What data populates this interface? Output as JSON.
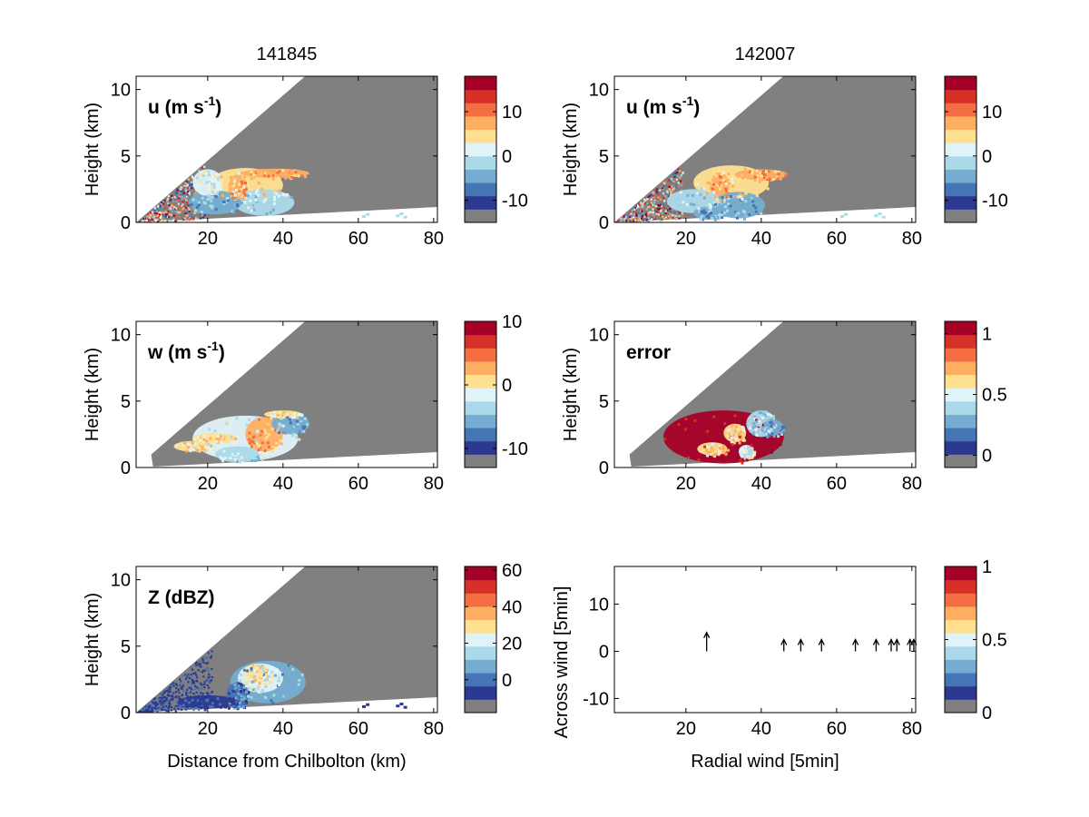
{
  "colors": {
    "background_fill": "#808080",
    "frame": "#000000",
    "colormap": [
      "#808080",
      "#2b3990",
      "#4575b4",
      "#74add1",
      "#abd9e9",
      "#e0f3f8",
      "#fee090",
      "#fdae61",
      "#f46d43",
      "#d73027",
      "#a50026"
    ],
    "arrow": "#000000"
  },
  "chart_data": [
    {
      "type": "heatmap",
      "panel": "u-141845",
      "title": "141845",
      "label": "u (m s-1)",
      "xlabel": "",
      "ylabel": "Height (km)",
      "xlim": [
        1,
        81
      ],
      "ylim": [
        0,
        11
      ],
      "xticks": [
        "20",
        "40",
        "60",
        "80"
      ],
      "yticks": [
        "0",
        "5",
        "10"
      ],
      "colorbar": {
        "ticks": [
          "10",
          "0",
          "-10"
        ],
        "tick_values": [
          10,
          0,
          -10
        ],
        "range": [
          -15,
          18
        ]
      }
    },
    {
      "type": "heatmap",
      "panel": "u-142007",
      "title": "142007",
      "label": "u (m s-1)",
      "xlabel": "",
      "ylabel": "Height (km)",
      "xlim": [
        1,
        81
      ],
      "ylim": [
        0,
        11
      ],
      "xticks": [
        "20",
        "40",
        "60",
        "80"
      ],
      "yticks": [
        "0",
        "5",
        "10"
      ],
      "colorbar": {
        "ticks": [
          "10",
          "0",
          "-10"
        ],
        "tick_values": [
          10,
          0,
          -10
        ],
        "range": [
          -15,
          18
        ]
      }
    },
    {
      "type": "heatmap",
      "panel": "w",
      "label": "w (m s-1)",
      "xlabel": "",
      "ylabel": "Height (km)",
      "xlim": [
        1,
        81
      ],
      "ylim": [
        0,
        11
      ],
      "xticks": [
        "20",
        "40",
        "60",
        "80"
      ],
      "yticks": [
        "0",
        "5",
        "10"
      ],
      "colorbar": {
        "ticks": [
          "10",
          "0",
          "-10"
        ],
        "tick_values": [
          10,
          0,
          -10
        ],
        "range": [
          -13,
          10
        ]
      }
    },
    {
      "type": "heatmap",
      "panel": "error",
      "label": "error",
      "xlabel": "",
      "ylabel": "Height (km)",
      "xlim": [
        1,
        81
      ],
      "ylim": [
        0,
        11
      ],
      "xticks": [
        "20",
        "40",
        "60",
        "80"
      ],
      "yticks": [
        "0",
        "5",
        "10"
      ],
      "colorbar": {
        "ticks": [
          "1",
          "0.5",
          "0"
        ],
        "tick_values": [
          1,
          0.5,
          0
        ],
        "range": [
          -0.1,
          1.1
        ]
      }
    },
    {
      "type": "heatmap",
      "panel": "Z",
      "label": "Z (dBZ)",
      "xlabel": "Distance from Chilbolton (km)",
      "ylabel": "Height (km)",
      "xlim": [
        1,
        81
      ],
      "ylim": [
        0,
        11
      ],
      "xticks": [
        "20",
        "40",
        "60",
        "80"
      ],
      "yticks": [
        "0",
        "5",
        "10"
      ],
      "colorbar": {
        "ticks": [
          "60",
          "40",
          "20",
          "0"
        ],
        "tick_values": [
          60,
          40,
          20,
          0
        ],
        "range": [
          -18,
          62
        ]
      }
    },
    {
      "type": "scatter",
      "panel": "wind-vectors",
      "xlabel": "Radial wind [5min]",
      "ylabel": "Across wind [5min]",
      "xlim": [
        1,
        81
      ],
      "ylim": [
        -13,
        18
      ],
      "xticks": [
        "20",
        "40",
        "60",
        "80"
      ],
      "yticks": [
        "-10",
        "0",
        "10"
      ],
      "arrows": [
        {
          "x": 25.5,
          "y": 0,
          "dy": 4.0
        },
        {
          "x": 46,
          "y": 0,
          "dy": 2.5
        },
        {
          "x": 50.5,
          "y": 0,
          "dy": 2.5
        },
        {
          "x": 56,
          "y": 0,
          "dy": 2.5
        },
        {
          "x": 65,
          "y": 0,
          "dy": 2.5
        },
        {
          "x": 70.5,
          "y": 0,
          "dy": 2.5
        },
        {
          "x": 74.5,
          "y": 0,
          "dy": 2.5
        },
        {
          "x": 76,
          "y": 0,
          "dy": 2.5
        },
        {
          "x": 79.5,
          "y": 0,
          "dy": 2.5
        },
        {
          "x": 80.5,
          "y": 0,
          "dy": 2.5
        }
      ],
      "colorbar": {
        "ticks": [
          "1",
          "0.5",
          "0"
        ],
        "tick_values": [
          1,
          0.5,
          0
        ],
        "range": [
          0,
          1
        ]
      }
    }
  ]
}
